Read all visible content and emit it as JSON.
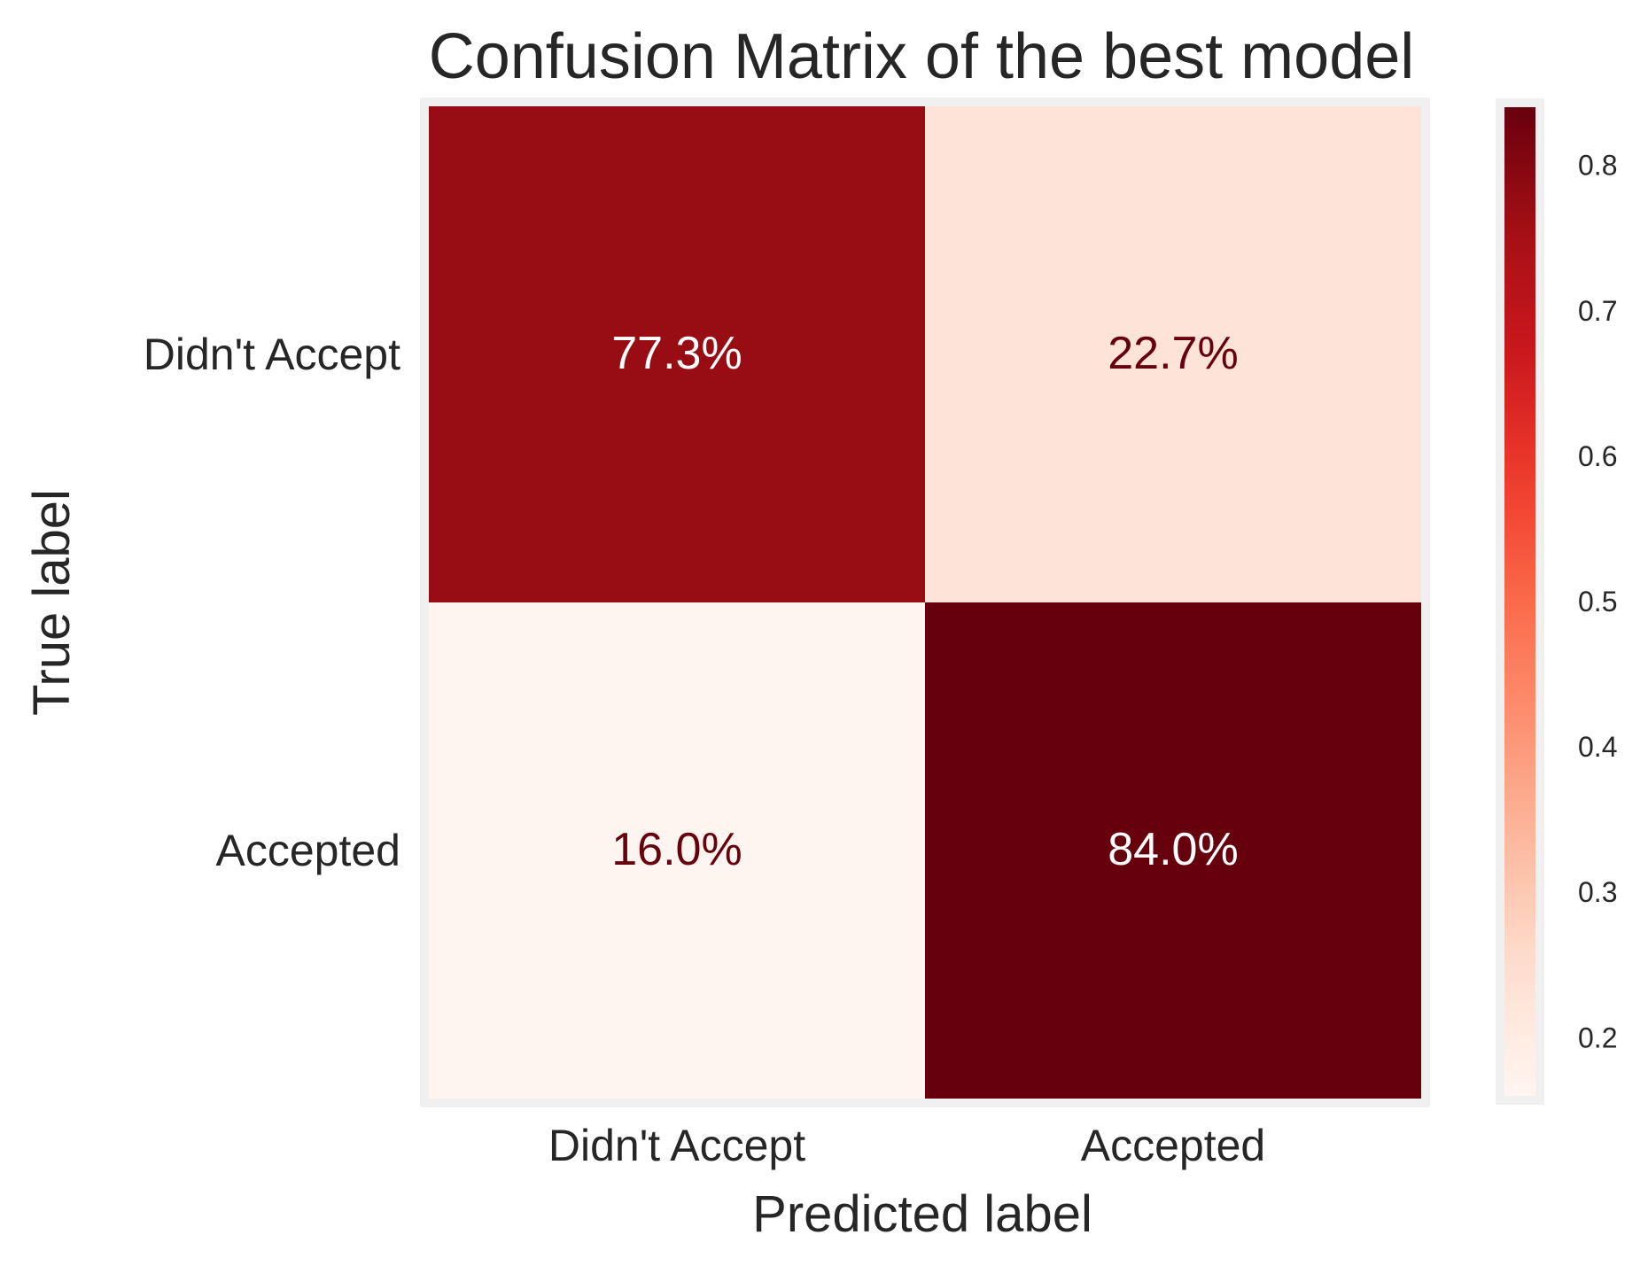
{
  "chart_data": {
    "type": "heatmap",
    "title": "Confusion Matrix of the best model",
    "xlabel": "Predicted label",
    "ylabel": "True label",
    "x_categories": [
      "Didn't Accept",
      "Accepted"
    ],
    "y_categories": [
      "Didn't Accept",
      "Accepted"
    ],
    "values": [
      [
        0.773,
        0.227
      ],
      [
        0.16,
        0.84
      ]
    ],
    "cell_labels": [
      [
        "77.3%",
        "22.7%"
      ],
      [
        "16.0%",
        "84.0%"
      ]
    ],
    "colormap": "Reds",
    "colorbar": {
      "range": [
        0.16,
        0.84
      ],
      "ticks": [
        0.2,
        0.3,
        0.4,
        0.5,
        0.6,
        0.7,
        0.8
      ],
      "tick_labels": [
        "0.2",
        "0.3",
        "0.4",
        "0.5",
        "0.6",
        "0.7",
        "0.8"
      ]
    },
    "colors": {
      "text_dark": "#67000d",
      "text_light": "#ffffff",
      "frame": "#f0f0f0"
    }
  }
}
